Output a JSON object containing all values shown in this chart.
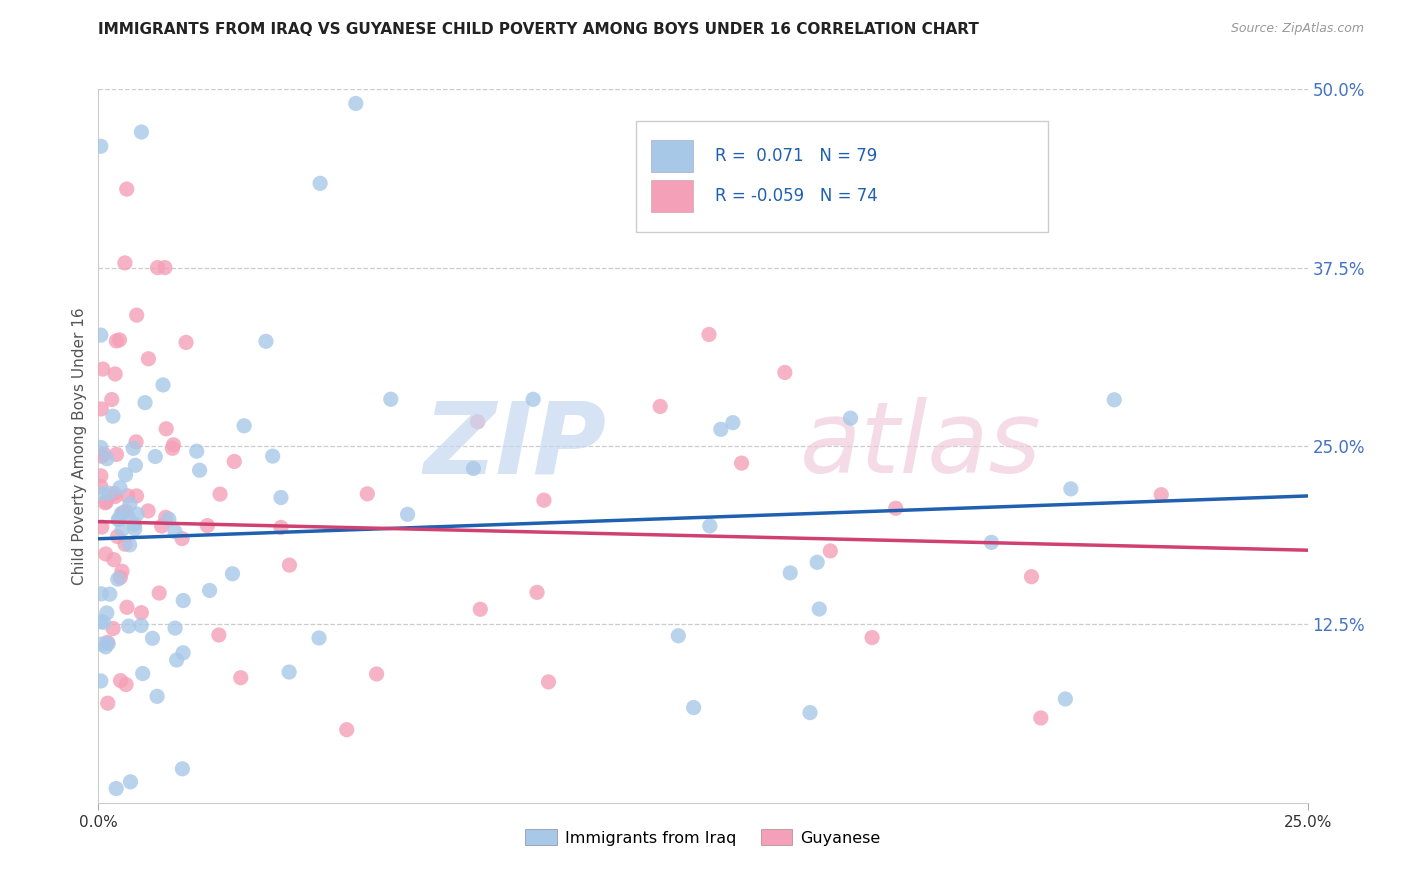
{
  "title": "IMMIGRANTS FROM IRAQ VS GUYANESE CHILD POVERTY AMONG BOYS UNDER 16 CORRELATION CHART",
  "source": "Source: ZipAtlas.com",
  "ylabel": "Child Poverty Among Boys Under 16",
  "legend_label1": "Immigrants from Iraq",
  "legend_label2": "Guyanese",
  "R1": 0.071,
  "N1": 79,
  "R2": -0.059,
  "N2": 74,
  "color1": "#a8c8e8",
  "color2": "#f4a0b8",
  "line_color1": "#2060b0",
  "line_color2": "#d04070",
  "background": "#ffffff",
  "xlim": [
    0.0,
    0.25
  ],
  "ylim": [
    0.0,
    0.5
  ],
  "ytick_vals": [
    0.125,
    0.25,
    0.375,
    0.5
  ],
  "ytick_labels": [
    "12.5%",
    "25.0%",
    "37.5%",
    "50.0%"
  ],
  "line1_y0": 0.185,
  "line1_y1": 0.215,
  "line2_y0": 0.197,
  "line2_y1": 0.177,
  "seed1": 12,
  "seed2": 77
}
